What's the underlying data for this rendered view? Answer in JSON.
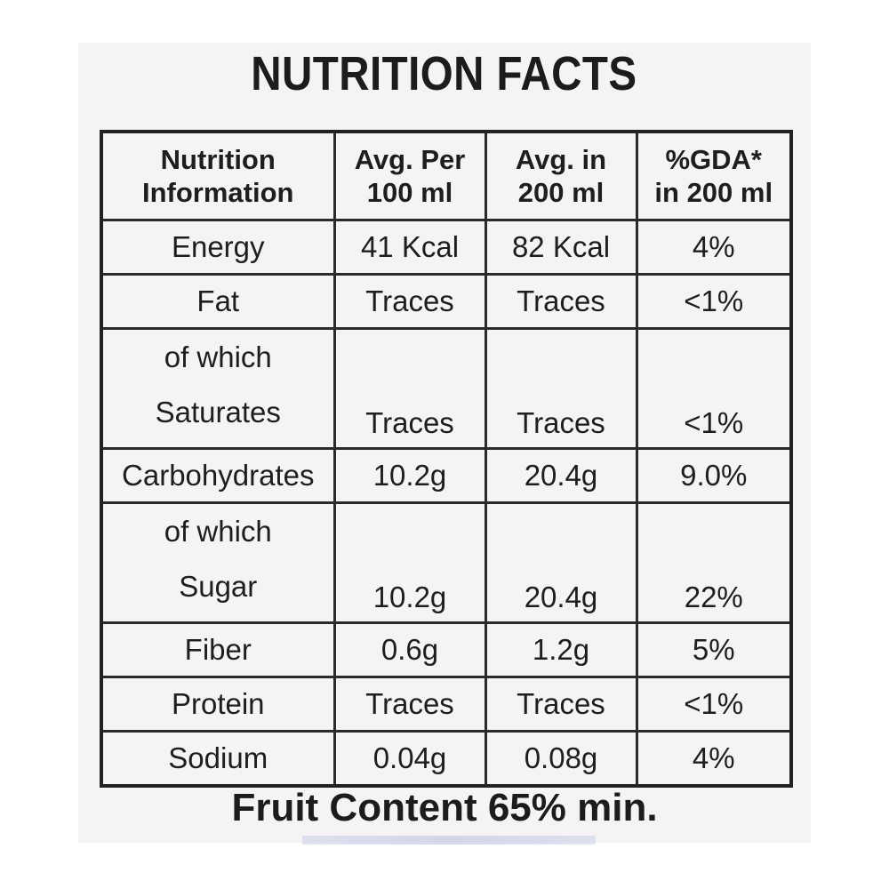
{
  "title": "NUTRITION FACTS",
  "headers": {
    "col1_line1": "Nutrition",
    "col1_line2": "Information",
    "col2_line1": "Avg. Per",
    "col2_line2": "100 ml",
    "col3_line1": "Avg. in",
    "col3_line2": "200 ml",
    "col4_line1": "%GDA*",
    "col4_line2": "in 200 ml"
  },
  "rows": [
    {
      "name": "Energy",
      "per100": "41 Kcal",
      "per200": "82 Kcal",
      "gda": "4%"
    },
    {
      "name": "Fat",
      "per100": "Traces",
      "per200": "Traces",
      "gda": "<1%"
    },
    {
      "prefix": "of which",
      "name": "Saturates",
      "per100": "Traces",
      "per200": "Traces",
      "gda": "<1%"
    },
    {
      "name": "Carbohydrates",
      "per100": "10.2g",
      "per200": "20.4g",
      "gda": "9.0%"
    },
    {
      "prefix": "of which",
      "name": "Sugar",
      "per100": "10.2g",
      "per200": "20.4g",
      "gda": "22%"
    },
    {
      "name": "Fiber",
      "per100": "0.6g",
      "per200": "1.2g",
      "gda": "5%"
    },
    {
      "name": "Protein",
      "per100": "Traces",
      "per200": "Traces",
      "gda": "<1%"
    },
    {
      "name": "Sodium",
      "per100": "0.04g",
      "per200": "0.08g",
      "gda": "4%"
    }
  ],
  "footer": "Fruit Content 65% min."
}
